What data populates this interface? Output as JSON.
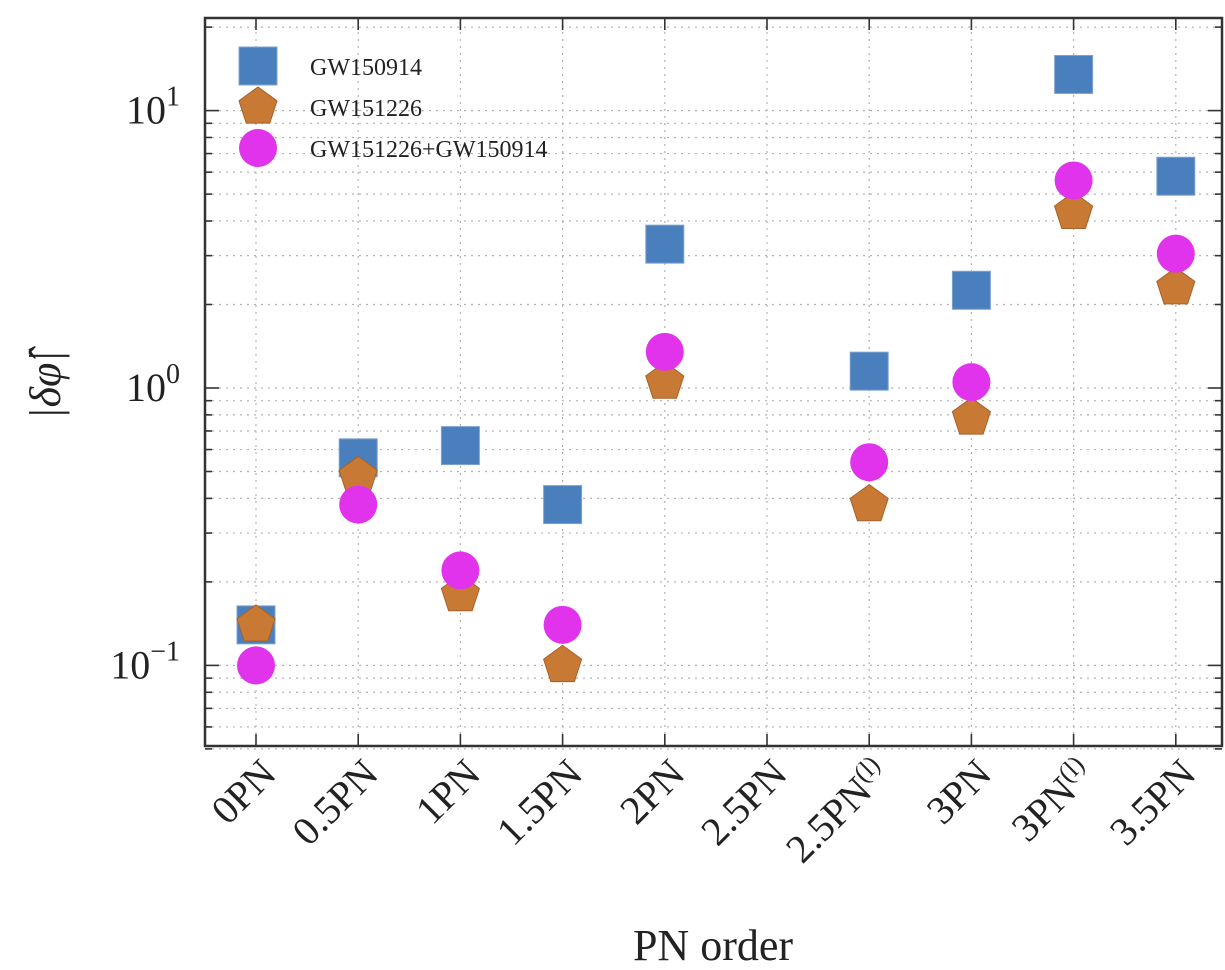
{
  "chart_data": {
    "type": "scatter",
    "yscale": "log",
    "ylim": [
      0.05,
      20
    ],
    "categories": [
      "0PN",
      "0.5PN",
      "1PN",
      "1.5PN",
      "2PN",
      "2.5PN",
      "2.5PN^(l)",
      "3PN",
      "3PN^(l)",
      "3.5PN"
    ],
    "category_labels": [
      {
        "main": "0PN",
        "sup": ""
      },
      {
        "main": "0.5PN",
        "sup": ""
      },
      {
        "main": "1PN",
        "sup": ""
      },
      {
        "main": "1.5PN",
        "sup": ""
      },
      {
        "main": "2PN",
        "sup": ""
      },
      {
        "main": "2.5PN",
        "sup": ""
      },
      {
        "main": "2.5PN",
        "sup": "(l)"
      },
      {
        "main": "3PN",
        "sup": ""
      },
      {
        "main": "3PN",
        "sup": "(l)"
      },
      {
        "main": "3.5PN",
        "sup": ""
      }
    ],
    "y_ticks": [
      {
        "value": 0.1,
        "base": "10",
        "exp": "−1"
      },
      {
        "value": 1,
        "base": "10",
        "exp": "0"
      },
      {
        "value": 10,
        "base": "10",
        "exp": "1"
      }
    ],
    "xlabel": "PN order",
    "ylabel": "|δφ̂|",
    "grid": true,
    "legend_position": "top-left",
    "series": [
      {
        "name": "GW150914",
        "marker": "square",
        "color": "#4a7fbd",
        "values": [
          0.14,
          0.56,
          0.62,
          0.38,
          3.3,
          null,
          1.15,
          2.25,
          13.5,
          5.8
        ]
      },
      {
        "name": "GW151226",
        "marker": "pentagon",
        "color": "#c87a35",
        "values": [
          0.14,
          0.48,
          0.18,
          0.1,
          1.05,
          null,
          0.38,
          0.78,
          4.3,
          2.3
        ]
      },
      {
        "name": "GW151226+GW150914",
        "marker": "circle",
        "color": "#e233ec",
        "values": [
          0.1,
          0.38,
          0.22,
          0.14,
          1.35,
          null,
          0.54,
          1.05,
          5.6,
          3.05
        ]
      }
    ]
  }
}
